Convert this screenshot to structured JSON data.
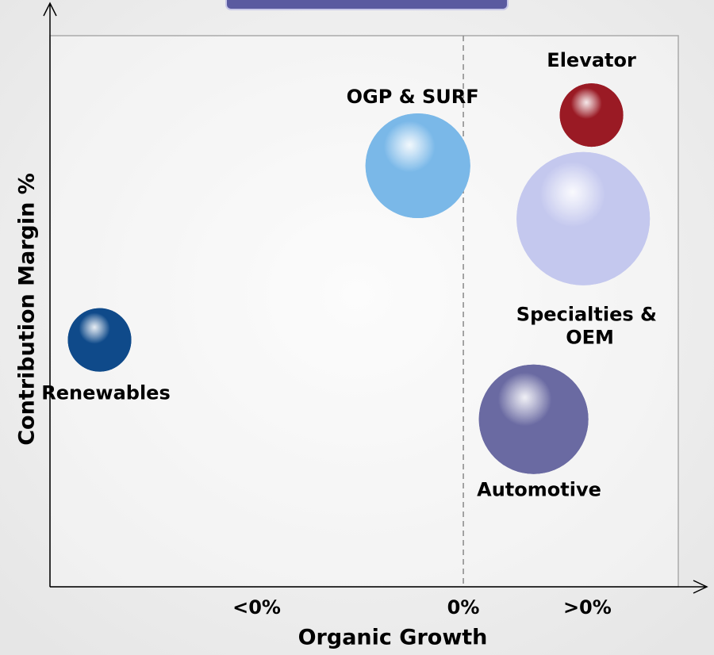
{
  "chart_data": {
    "type": "bubble",
    "x_label": "Organic Growth",
    "y_label": "Contribution Margin %",
    "xlim": [
      -10,
      5.2
    ],
    "ylim": [
      0,
      25
    ],
    "xticks": [
      {
        "value": -5,
        "label": "<0%"
      },
      {
        "value": 0,
        "label": "0%"
      },
      {
        "value": 3,
        "label": ">0%"
      }
    ],
    "zero_line": true,
    "series": [
      {
        "name": "OGP & SURF",
        "color": "#7ab8e8",
        "x": [
          -1.1
        ],
        "values": [
          19.1
        ],
        "sizes": [
          43.6
        ]
      },
      {
        "name": "Elevator",
        "color": "#9a1a24",
        "x": [
          3.1
        ],
        "values": [
          21.4
        ],
        "sizes": [
          16
        ]
      },
      {
        "name": "Specialties & OEM",
        "color": "#c4c8ee",
        "x": [
          2.9
        ],
        "values": [
          16.7
        ],
        "sizes": [
          70.6
        ]
      },
      {
        "name": "Renewables",
        "color": "#0f4a8a",
        "x": [
          -8.8
        ],
        "values": [
          11.2
        ],
        "sizes": [
          16
        ]
      },
      {
        "name": "Automotive",
        "color": "#6a6aa2",
        "x": [
          1.7
        ],
        "values": [
          7.6
        ],
        "sizes": [
          47.6
        ]
      }
    ]
  }
}
